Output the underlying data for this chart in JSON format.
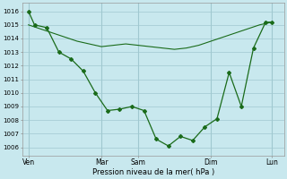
{
  "line_color": "#1a6b1a",
  "bg_color": "#c8e8ee",
  "grid_color": "#a0c8d0",
  "ylabel_ticks": [
    1006,
    1007,
    1008,
    1009,
    1010,
    1011,
    1012,
    1013,
    1014,
    1015,
    1016
  ],
  "xlabel": "Pression niveau de la mer( hPa )",
  "xtick_labels": [
    "Ven",
    "Mar",
    "Sam",
    "Dim",
    "Lun"
  ],
  "xtick_positions": [
    0,
    6,
    9,
    15,
    20
  ],
  "ylim": [
    1005.4,
    1016.6
  ],
  "xlim": [
    -0.5,
    21.0
  ],
  "line1_x": [
    0,
    0.5,
    1.5,
    2.5,
    3.5,
    4.5,
    5.5,
    6.5,
    7.5,
    8.5,
    9.5,
    10.5,
    11.5,
    12.5,
    13.5,
    14.5,
    15.5,
    16.5,
    17.5,
    18.5,
    19.5,
    20.0
  ],
  "line1_y": [
    1016,
    1015,
    1014.8,
    1013.0,
    1012.5,
    1011.6,
    1010.0,
    1008.7,
    1008.8,
    1009.0,
    1008.7,
    1006.6,
    1006.1,
    1006.8,
    1006.5,
    1007.5,
    1008.1,
    1011.5,
    1009.0,
    1013.3,
    1015.2,
    1015.2
  ],
  "line2_x": [
    0,
    1,
    2,
    3,
    4,
    5,
    6,
    7,
    8,
    9,
    10,
    11,
    12,
    13,
    14,
    15,
    16,
    17,
    18,
    19,
    20
  ],
  "line2_y": [
    1015.0,
    1014.7,
    1014.4,
    1014.1,
    1013.8,
    1013.6,
    1013.4,
    1013.5,
    1013.6,
    1013.5,
    1013.4,
    1013.3,
    1013.2,
    1013.3,
    1013.5,
    1013.8,
    1014.1,
    1014.4,
    1014.7,
    1015.0,
    1015.2
  ],
  "figsize": [
    3.2,
    2.0
  ],
  "dpi": 100
}
